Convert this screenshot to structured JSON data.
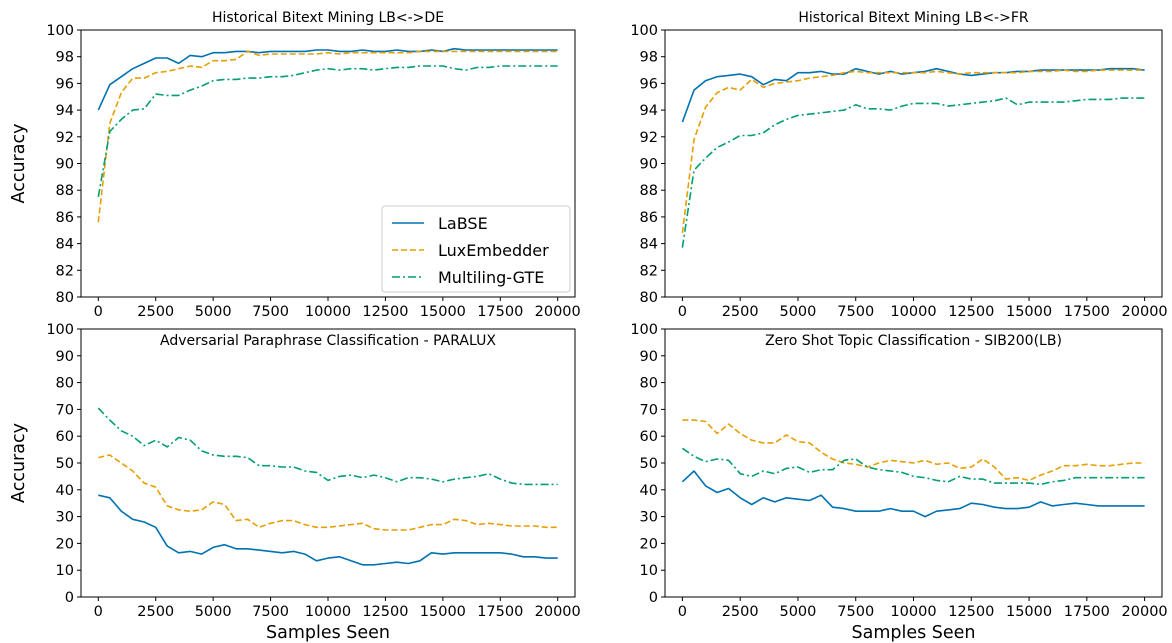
{
  "chart_data": [
    {
      "type": "line",
      "title": "Historical Bitext Mining LB<->DE",
      "xlabel": "",
      "ylabel": "Accuracy",
      "xlim": [
        0,
        20000
      ],
      "ylim": [
        80,
        100
      ],
      "xticks": [
        0,
        2500,
        5000,
        7500,
        10000,
        12500,
        15000,
        17500,
        20000
      ],
      "yticks": [
        80,
        82,
        84,
        86,
        88,
        90,
        92,
        94,
        96,
        98,
        100
      ],
      "legend": "lower-right",
      "x": [
        0,
        500,
        1000,
        1500,
        2000,
        2500,
        3000,
        3500,
        4000,
        4500,
        5000,
        5500,
        6000,
        6500,
        7000,
        7500,
        8000,
        8500,
        9000,
        9500,
        10000,
        10500,
        11000,
        11500,
        12000,
        12500,
        13000,
        13500,
        14000,
        14500,
        15000,
        15500,
        16000,
        16500,
        17000,
        17500,
        18000,
        18500,
        19000,
        19500,
        20000
      ],
      "series": [
        {
          "name": "LaBSE",
          "color": "#0072B2",
          "dash": "solid",
          "values": [
            94.0,
            95.9,
            96.5,
            97.1,
            97.5,
            97.9,
            97.9,
            97.5,
            98.1,
            98.0,
            98.3,
            98.3,
            98.4,
            98.4,
            98.3,
            98.4,
            98.4,
            98.4,
            98.4,
            98.5,
            98.5,
            98.4,
            98.4,
            98.5,
            98.4,
            98.4,
            98.5,
            98.4,
            98.4,
            98.5,
            98.4,
            98.6,
            98.5,
            98.5,
            98.5,
            98.5,
            98.5,
            98.5,
            98.5,
            98.5,
            98.5
          ]
        },
        {
          "name": "LuxEmbedder",
          "color": "#E69F00",
          "dash": "dashed",
          "values": [
            85.6,
            93.0,
            95.3,
            96.4,
            96.4,
            96.8,
            96.9,
            97.1,
            97.3,
            97.2,
            97.7,
            97.7,
            97.8,
            98.4,
            98.1,
            98.2,
            98.2,
            98.2,
            98.2,
            98.2,
            98.3,
            98.2,
            98.3,
            98.3,
            98.3,
            98.3,
            98.3,
            98.3,
            98.4,
            98.4,
            98.4,
            98.4,
            98.4,
            98.4,
            98.4,
            98.4,
            98.4,
            98.4,
            98.4,
            98.4,
            98.4
          ]
        },
        {
          "name": "Multiling-GTE",
          "color": "#009E73",
          "dash": "dashdot",
          "values": [
            87.5,
            92.4,
            93.3,
            94.0,
            94.1,
            95.2,
            95.1,
            95.1,
            95.5,
            95.8,
            96.2,
            96.3,
            96.3,
            96.4,
            96.4,
            96.5,
            96.5,
            96.6,
            96.8,
            97.0,
            97.1,
            97.0,
            97.1,
            97.1,
            97.0,
            97.1,
            97.2,
            97.2,
            97.3,
            97.3,
            97.3,
            97.1,
            97.0,
            97.2,
            97.2,
            97.3,
            97.3,
            97.3,
            97.3,
            97.3,
            97.3
          ]
        }
      ]
    },
    {
      "type": "line",
      "title": "Historical Bitext Mining LB<->FR",
      "xlabel": "",
      "ylabel": "",
      "xlim": [
        0,
        20000
      ],
      "ylim": [
        80,
        100
      ],
      "xticks": [
        0,
        2500,
        5000,
        7500,
        10000,
        12500,
        15000,
        17500,
        20000
      ],
      "yticks": [
        80,
        82,
        84,
        86,
        88,
        90,
        92,
        94,
        96,
        98,
        100
      ],
      "x": [
        0,
        500,
        1000,
        1500,
        2000,
        2500,
        3000,
        3500,
        4000,
        4500,
        5000,
        5500,
        6000,
        6500,
        7000,
        7500,
        8000,
        8500,
        9000,
        9500,
        10000,
        10500,
        11000,
        11500,
        12000,
        12500,
        13000,
        13500,
        14000,
        14500,
        15000,
        15500,
        16000,
        16500,
        17000,
        17500,
        18000,
        18500,
        19000,
        19500,
        20000
      ],
      "series": [
        {
          "name": "LaBSE",
          "color": "#0072B2",
          "dash": "solid",
          "values": [
            93.1,
            95.5,
            96.2,
            96.5,
            96.6,
            96.7,
            96.5,
            95.9,
            96.3,
            96.2,
            96.8,
            96.8,
            96.9,
            96.7,
            96.7,
            97.1,
            96.9,
            96.7,
            96.9,
            96.7,
            96.8,
            96.9,
            97.1,
            96.9,
            96.7,
            96.6,
            96.7,
            96.8,
            96.8,
            96.9,
            96.9,
            97.0,
            97.0,
            97.0,
            97.0,
            97.0,
            97.0,
            97.1,
            97.1,
            97.1,
            97.0
          ]
        },
        {
          "name": "LuxEmbedder",
          "color": "#E69F00",
          "dash": "dashed",
          "values": [
            84.8,
            91.8,
            94.2,
            95.3,
            95.7,
            95.5,
            96.3,
            95.7,
            96.0,
            96.1,
            96.2,
            96.4,
            96.5,
            96.6,
            96.8,
            96.9,
            96.8,
            96.8,
            96.8,
            96.8,
            96.8,
            96.8,
            96.9,
            96.8,
            96.7,
            96.8,
            96.8,
            96.8,
            96.8,
            96.8,
            96.9,
            96.9,
            96.9,
            97.0,
            96.9,
            96.9,
            97.0,
            97.0,
            97.0,
            97.0,
            97.0
          ]
        },
        {
          "name": "Multiling-GTE",
          "color": "#009E73",
          "dash": "dashdot",
          "values": [
            83.7,
            89.5,
            90.4,
            91.2,
            91.6,
            92.1,
            92.1,
            92.3,
            92.9,
            93.3,
            93.6,
            93.7,
            93.8,
            93.9,
            94.0,
            94.4,
            94.1,
            94.1,
            94.0,
            94.3,
            94.5,
            94.5,
            94.5,
            94.3,
            94.4,
            94.5,
            94.6,
            94.7,
            94.9,
            94.4,
            94.6,
            94.6,
            94.6,
            94.6,
            94.7,
            94.8,
            94.8,
            94.8,
            94.9,
            94.9,
            94.9
          ]
        }
      ]
    },
    {
      "type": "line",
      "title": "Adversarial Paraphrase Classification - PARALUX",
      "xlabel": "Samples Seen",
      "ylabel": "Accuracy",
      "xlim": [
        0,
        20000
      ],
      "ylim": [
        0,
        100
      ],
      "xticks": [
        0,
        2500,
        5000,
        7500,
        10000,
        12500,
        15000,
        17500,
        20000
      ],
      "yticks": [
        0,
        10,
        20,
        30,
        40,
        50,
        60,
        70,
        80,
        90,
        100
      ],
      "x": [
        0,
        500,
        1000,
        1500,
        2000,
        2500,
        3000,
        3500,
        4000,
        4500,
        5000,
        5500,
        6000,
        6500,
        7000,
        7500,
        8000,
        8500,
        9000,
        9500,
        10000,
        10500,
        11000,
        11500,
        12000,
        12500,
        13000,
        13500,
        14000,
        14500,
        15000,
        15500,
        16000,
        16500,
        17000,
        17500,
        18000,
        18500,
        19000,
        19500,
        20000
      ],
      "series": [
        {
          "name": "LaBSE",
          "color": "#0072B2",
          "dash": "solid",
          "values": [
            38.0,
            37.0,
            32.0,
            29.0,
            28.0,
            26.0,
            19.0,
            16.5,
            17.0,
            16.0,
            18.5,
            19.5,
            18.0,
            18.0,
            17.5,
            17.0,
            16.5,
            17.0,
            16.0,
            13.5,
            14.5,
            15.0,
            13.5,
            12.0,
            12.0,
            12.5,
            13.0,
            12.5,
            13.5,
            16.5,
            16.0,
            16.5,
            16.5,
            16.5,
            16.5,
            16.5,
            16.0,
            15.0,
            15.0,
            14.5,
            14.5
          ]
        },
        {
          "name": "LuxEmbedder",
          "color": "#E69F00",
          "dash": "dashed",
          "values": [
            52.0,
            53.0,
            50.0,
            47.0,
            42.5,
            41.0,
            34.0,
            32.5,
            32.0,
            32.5,
            35.5,
            34.5,
            28.5,
            29.0,
            26.0,
            27.5,
            28.5,
            28.5,
            27.0,
            26.0,
            26.0,
            26.5,
            27.0,
            27.5,
            25.5,
            25.0,
            25.0,
            25.0,
            26.0,
            27.0,
            27.0,
            29.0,
            28.5,
            27.0,
            27.5,
            27.0,
            26.5,
            26.5,
            26.5,
            26.0,
            26.0
          ]
        },
        {
          "name": "Multiling-GTE",
          "color": "#009E73",
          "dash": "dashdot",
          "values": [
            70.5,
            66.0,
            62.0,
            60.0,
            56.5,
            58.5,
            56.0,
            59.5,
            58.5,
            54.5,
            53.0,
            52.5,
            52.5,
            52.0,
            49.0,
            49.0,
            48.5,
            48.5,
            47.0,
            46.5,
            43.5,
            45.0,
            45.5,
            44.5,
            45.5,
            44.5,
            43.0,
            44.5,
            44.5,
            44.0,
            43.0,
            44.0,
            44.5,
            45.0,
            46.0,
            44.0,
            42.5,
            42.0,
            42.0,
            42.0,
            42.0
          ]
        }
      ]
    },
    {
      "type": "line",
      "title": "Zero Shot Topic Classification - SIB200(LB)",
      "xlabel": "Samples Seen",
      "ylabel": "",
      "xlim": [
        0,
        20000
      ],
      "ylim": [
        0,
        100
      ],
      "xticks": [
        0,
        2500,
        5000,
        7500,
        10000,
        12500,
        15000,
        17500,
        20000
      ],
      "yticks": [
        0,
        10,
        20,
        30,
        40,
        50,
        60,
        70,
        80,
        90,
        100
      ],
      "x": [
        0,
        500,
        1000,
        1500,
        2000,
        2500,
        3000,
        3500,
        4000,
        4500,
        5000,
        5500,
        6000,
        6500,
        7000,
        7500,
        8000,
        8500,
        9000,
        9500,
        10000,
        10500,
        11000,
        11500,
        12000,
        12500,
        13000,
        13500,
        14000,
        14500,
        15000,
        15500,
        16000,
        16500,
        17000,
        17500,
        18000,
        18500,
        19000,
        19500,
        20000
      ],
      "series": [
        {
          "name": "LaBSE",
          "color": "#0072B2",
          "dash": "solid",
          "values": [
            43.0,
            47.0,
            41.5,
            39.0,
            40.5,
            37.0,
            34.5,
            37.0,
            35.5,
            37.0,
            36.5,
            36.0,
            38.0,
            33.5,
            33.0,
            32.0,
            32.0,
            32.0,
            33.0,
            32.0,
            32.0,
            30.0,
            32.0,
            32.5,
            33.0,
            35.0,
            34.5,
            33.5,
            33.0,
            33.0,
            33.5,
            35.5,
            34.0,
            34.5,
            35.0,
            34.5,
            34.0,
            34.0,
            34.0,
            34.0,
            34.0
          ]
        },
        {
          "name": "LuxEmbedder",
          "color": "#E69F00",
          "dash": "dashed",
          "values": [
            66.0,
            66.0,
            65.5,
            61.0,
            64.5,
            61.0,
            58.5,
            57.5,
            57.5,
            60.5,
            58.0,
            57.5,
            54.0,
            51.5,
            50.0,
            49.5,
            48.5,
            50.0,
            51.0,
            50.5,
            50.0,
            51.0,
            49.5,
            50.0,
            48.0,
            48.5,
            51.5,
            48.5,
            44.0,
            44.5,
            43.5,
            45.5,
            47.0,
            49.0,
            49.0,
            49.5,
            49.0,
            49.0,
            49.5,
            50.0,
            50.0
          ]
        },
        {
          "name": "Multiling-GTE",
          "color": "#009E73",
          "dash": "dashdot",
          "values": [
            55.5,
            52.5,
            50.5,
            51.5,
            51.0,
            46.0,
            45.0,
            47.0,
            46.0,
            48.0,
            48.5,
            46.5,
            47.5,
            47.5,
            51.0,
            51.5,
            48.5,
            47.5,
            47.0,
            46.5,
            45.0,
            44.5,
            43.5,
            43.0,
            45.0,
            44.0,
            44.0,
            42.5,
            42.5,
            42.5,
            42.5,
            42.0,
            43.0,
            43.5,
            44.5,
            44.5,
            44.5,
            44.5,
            44.5,
            44.5,
            44.5
          ]
        }
      ]
    }
  ]
}
